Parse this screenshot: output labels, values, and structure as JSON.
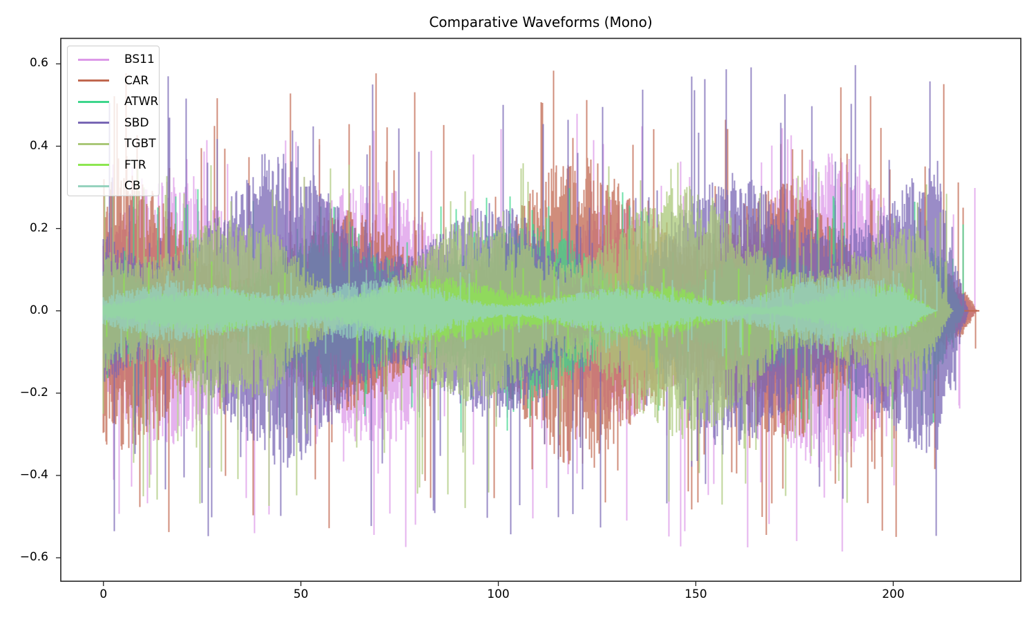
{
  "chart_data": {
    "type": "line",
    "title": "Comparative Waveforms (Mono)",
    "xlabel": "",
    "ylabel": "",
    "xlim": [
      -10.8,
      232.3
    ],
    "ylim": [
      -0.657,
      0.662
    ],
    "xticks": [
      0,
      50,
      100,
      150,
      200
    ],
    "xtick_labels": [
      "0",
      "50",
      "100",
      "150",
      "200"
    ],
    "yticks": [
      0.6,
      0.4,
      0.2,
      0.0,
      -0.2,
      -0.4,
      -0.6
    ],
    "ytick_labels": [
      "0.6",
      "0.4",
      "0.2",
      "0.0",
      "−0.2",
      "−0.4",
      "−0.6"
    ],
    "grid": false,
    "legend_position": "upper left",
    "series": [
      {
        "name": "BS11",
        "color": "#dc98e8",
        "duration": 221,
        "envelope": 0.2,
        "peak_max": 0.49,
        "peak_min": -0.6
      },
      {
        "name": "CAR",
        "color": "#c0674f",
        "duration": 221,
        "envelope": 0.2,
        "peak_max": 0.59,
        "peak_min": -0.56
      },
      {
        "name": "ATWR",
        "color": "#3dd68c",
        "duration": 218,
        "envelope": 0.12,
        "peak_max": 0.3,
        "peak_min": -0.3
      },
      {
        "name": "SBD",
        "color": "#7866b4",
        "duration": 219,
        "envelope": 0.2,
        "peak_max": 0.6,
        "peak_min": -0.55
      },
      {
        "name": "TGBT",
        "color": "#aac878",
        "duration": 215,
        "envelope": 0.16,
        "peak_max": 0.36,
        "peak_min": -0.48
      },
      {
        "name": "FTR",
        "color": "#8ce650",
        "duration": 211,
        "envelope": 0.05,
        "peak_max": 0.12,
        "peak_min": -0.15
      },
      {
        "name": "CB",
        "color": "#96d2be",
        "duration": 211,
        "envelope": 0.05,
        "peak_max": 0.1,
        "peak_min": -0.12
      }
    ],
    "notes": "Dense overlapping audio waveforms sampled over ~0-221 s; loud sections with peaks around ±0.4-0.6; FTR and CB form a narrow light-green band around 0 ending near t=211."
  },
  "legend": {
    "items": [
      {
        "label": "BS11",
        "color": "#dc98e8"
      },
      {
        "label": "CAR",
        "color": "#c0674f"
      },
      {
        "label": "ATWR",
        "color": "#3dd68c"
      },
      {
        "label": "SBD",
        "color": "#7866b4"
      },
      {
        "label": "TGBT",
        "color": "#aac878"
      },
      {
        "label": "FTR",
        "color": "#8ce650"
      },
      {
        "label": "CB",
        "color": "#96d2be"
      }
    ]
  }
}
